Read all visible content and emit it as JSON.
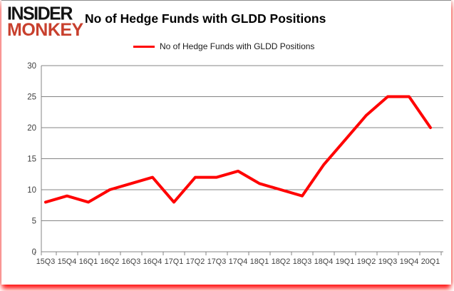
{
  "brand": {
    "line1": "INSIDER",
    "line2": "MONKEY",
    "line1_color": "#141414",
    "line2_color": "#c8402e"
  },
  "title": "No of Hedge Funds with GLDD Positions",
  "legend": {
    "label": "No of Hedge Funds with GLDD Positions",
    "line_color": "#ff0000"
  },
  "chart_data": {
    "type": "line",
    "title": "No of Hedge Funds with GLDD Positions",
    "categories": [
      "15Q3",
      "15Q4",
      "16Q1",
      "16Q2",
      "16Q3",
      "16Q4",
      "17Q1",
      "17Q2",
      "17Q3",
      "17Q4",
      "18Q1",
      "18Q2",
      "18Q3",
      "18Q4",
      "19Q1",
      "19Q2",
      "19Q3",
      "19Q4",
      "20Q1"
    ],
    "values": [
      8,
      9,
      8,
      10,
      11,
      12,
      8,
      12,
      12,
      13,
      11,
      10,
      9,
      14,
      18,
      22,
      25,
      25,
      20
    ],
    "xlabel": "",
    "ylabel": "",
    "ylim": [
      0,
      30
    ],
    "yticks": [
      0,
      5,
      10,
      15,
      20,
      25,
      30
    ],
    "grid": true,
    "legend_position": "top",
    "line_color": "#ff0000",
    "gridline_color": "#848484",
    "axis_text_color": "#3f3f3f"
  }
}
